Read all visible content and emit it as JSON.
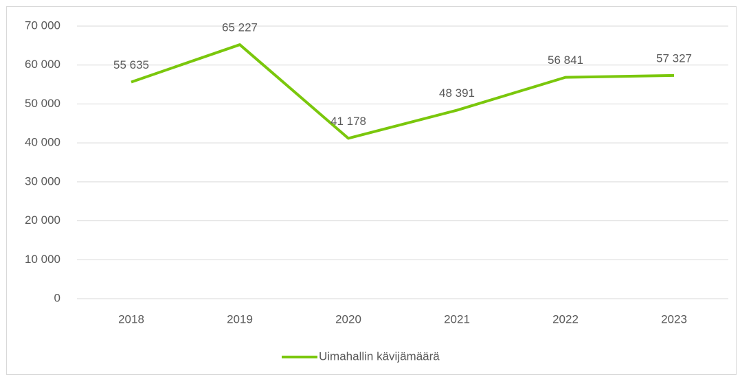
{
  "chart_data": {
    "type": "line",
    "categories": [
      "2018",
      "2019",
      "2020",
      "2021",
      "2022",
      "2023"
    ],
    "series": [
      {
        "name": "Uimahallin kävijämäärä",
        "color": "#7ac70c",
        "values": [
          55635,
          65227,
          41178,
          48391,
          56841,
          57327
        ],
        "value_labels": [
          "55 635",
          "65 227",
          "41 178",
          "48 391",
          "56 841",
          "57 327"
        ]
      }
    ],
    "ylim": [
      0,
      70000
    ],
    "yticks": [
      0,
      {
        "value": 10000,
        "label": "10 000"
      },
      {
        "value": 20000,
        "label": "20 000"
      },
      {
        "value": 30000,
        "label": "30 000"
      },
      {
        "value": 40000,
        "label": "40 000"
      },
      {
        "value": 50000,
        "label": "50 000"
      },
      {
        "value": 60000,
        "label": "60 000"
      },
      {
        "value": 70000,
        "label": "70 000"
      }
    ],
    "grid": true,
    "legend": "bottom"
  }
}
